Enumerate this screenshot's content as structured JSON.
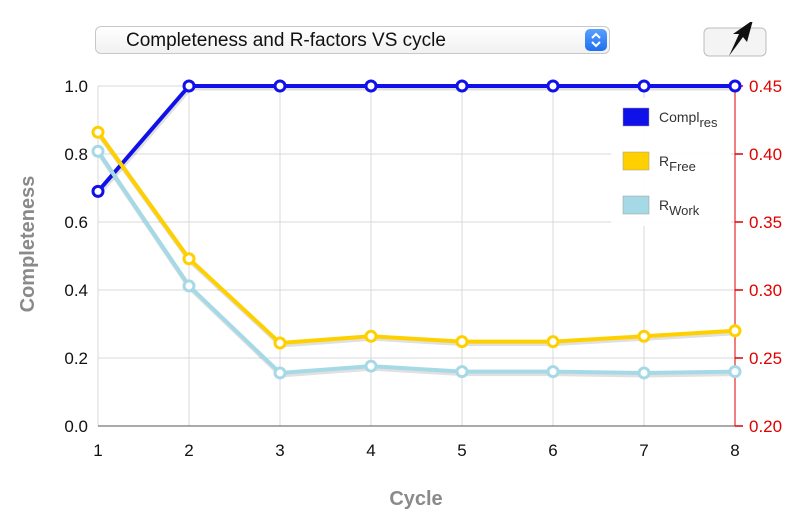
{
  "selector": {
    "label": "Completeness and R-factors VS cycle"
  },
  "icons": {
    "export": "export-arrow-icon",
    "stepper": "up-down-chevron-icon"
  },
  "colors": {
    "completeness": "#1010e8",
    "rfree": "#ffd000",
    "rwork": "#a6d9e6",
    "right_axis": "#e00000"
  },
  "chart_data": {
    "type": "line",
    "xlabel": "Cycle",
    "ylabel_left": "Completeness",
    "ylabel_right": "",
    "x": [
      1,
      2,
      3,
      4,
      5,
      6,
      7,
      8
    ],
    "xticks": [
      "1",
      "2",
      "3",
      "4",
      "5",
      "6",
      "7",
      "8"
    ],
    "ylim_left": [
      0.0,
      1.0
    ],
    "yticks_left": [
      "0.0",
      "0.2",
      "0.4",
      "0.6",
      "0.8",
      "1.0"
    ],
    "ylim_right": [
      0.2,
      0.45
    ],
    "yticks_right": [
      "0.20",
      "0.25",
      "0.30",
      "0.35",
      "0.40",
      "0.45"
    ],
    "grid": true,
    "legend_position": "top-right",
    "series": [
      {
        "name": "Compl",
        "name_sub": "res",
        "axis": "left",
        "values": [
          0.69,
          1.0,
          1.0,
          1.0,
          1.0,
          1.0,
          1.0,
          1.0
        ]
      },
      {
        "name": "R",
        "name_sub": "Free",
        "axis": "right",
        "values": [
          0.416,
          0.323,
          0.261,
          0.266,
          0.262,
          0.262,
          0.266,
          0.27
        ]
      },
      {
        "name": "R",
        "name_sub": "Work",
        "axis": "right",
        "values": [
          0.402,
          0.303,
          0.239,
          0.244,
          0.24,
          0.24,
          0.239,
          0.24
        ]
      }
    ]
  }
}
